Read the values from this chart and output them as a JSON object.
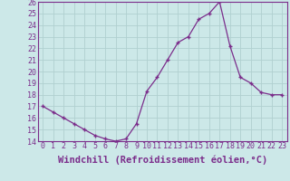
{
  "x": [
    0,
    1,
    2,
    3,
    4,
    5,
    6,
    7,
    8,
    9,
    10,
    11,
    12,
    13,
    14,
    15,
    16,
    17,
    18,
    19,
    20,
    21,
    22,
    23
  ],
  "y": [
    17.0,
    16.5,
    16.0,
    15.5,
    15.0,
    14.5,
    14.2,
    14.0,
    14.2,
    15.5,
    18.3,
    19.5,
    21.0,
    22.5,
    23.0,
    24.5,
    25.0,
    26.0,
    22.2,
    19.5,
    19.0,
    18.2,
    18.0,
    18.0
  ],
  "ylim": [
    14,
    26
  ],
  "yticks": [
    14,
    15,
    16,
    17,
    18,
    19,
    20,
    21,
    22,
    23,
    24,
    25,
    26
  ],
  "xticks": [
    0,
    1,
    2,
    3,
    4,
    5,
    6,
    7,
    8,
    9,
    10,
    11,
    12,
    13,
    14,
    15,
    16,
    17,
    18,
    19,
    20,
    21,
    22,
    23
  ],
  "xlabel": "Windchill (Refroidissement éolien,°C)",
  "line_color": "#7b2d8b",
  "marker": "+",
  "bg_color": "#cce8e8",
  "grid_color": "#b0d0d0",
  "tick_color": "#7b2d8b",
  "label_color": "#7b2d8b",
  "tick_fontsize": 6,
  "xlabel_fontsize": 7.5
}
